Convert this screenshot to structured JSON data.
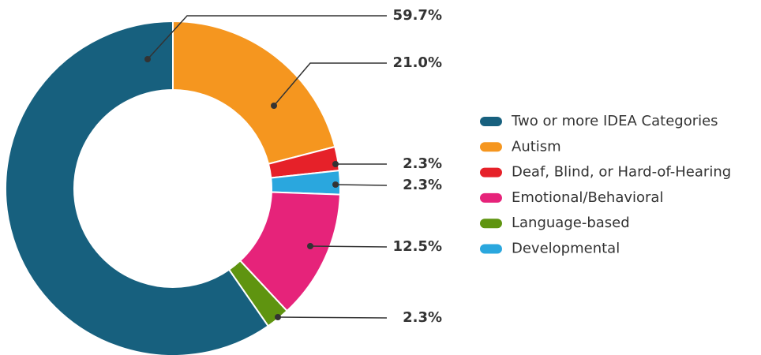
{
  "chart_data": {
    "type": "donut",
    "categories": [
      "Two or more IDEA Categories",
      "Autism",
      "Deaf, Blind, or Hard-of-Hearing",
      "Emotional/Behavioral",
      "Language-based",
      "Developmental"
    ],
    "values": [
      59.7,
      21.0,
      2.3,
      12.5,
      2.3,
      2.3
    ],
    "value_labels": [
      "59.7%",
      "21.0%",
      "2.3%",
      "12.5%",
      "2.3%",
      "2.3%"
    ],
    "colors": [
      "#17607e",
      "#f5961f",
      "#e62129",
      "#e6237a",
      "#5f9410",
      "#2aa7de"
    ],
    "legend": "right"
  }
}
